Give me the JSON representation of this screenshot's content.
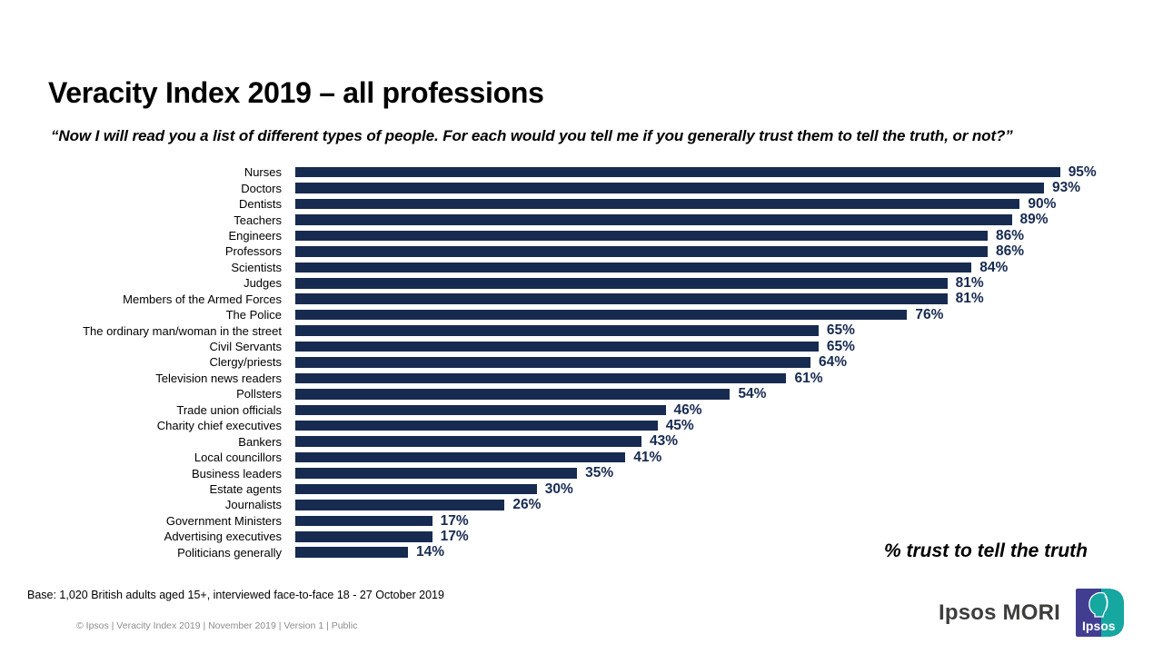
{
  "slide": {
    "title": "Veracity Index 2019 – all professions",
    "subtitle": "“Now I will read you a list of different types of people. For each would you tell me if you generally trust them to tell the truth, or not?”",
    "base_note": "Base: 1,020 British adults aged 15+, interviewed face-to-face 18 - 27 October 2019",
    "footer": "© Ipsos | Veracity Index 2019 | November 2019 | Version 1 | Public",
    "brand": {
      "wordmark": "Ipsos MORI",
      "logo_text": "Ipsos"
    }
  },
  "colors": {
    "bar_navy": "#172A50",
    "value_label_navy": "#172A50",
    "footer_gray": "#8C8C8C",
    "logo_purple": "#413E91",
    "logo_teal": "#16A7A1"
  },
  "chart_data": {
    "type": "bar",
    "orientation": "horizontal",
    "title": "Veracity Index 2019 – all professions",
    "annotation": "% trust to tell the truth",
    "unit": "%",
    "xlim": [
      0,
      100
    ],
    "grid": false,
    "legend": false,
    "bar_color": "#172A50",
    "categories": [
      "Nurses",
      "Doctors",
      "Dentists",
      "Teachers",
      "Engineers",
      "Professors",
      "Scientists",
      "Judges",
      "Members of the Armed Forces",
      "The Police",
      "The ordinary man/woman in the street",
      "Civil Servants",
      "Clergy/priests",
      "Television news readers",
      "Pollsters",
      "Trade union officials",
      "Charity chief executives",
      "Bankers",
      "Local councillors",
      "Business leaders",
      "Estate agents",
      "Journalists",
      "Government Ministers",
      "Advertising executives",
      "Politicians generally"
    ],
    "values": [
      95,
      93,
      90,
      89,
      86,
      86,
      84,
      81,
      81,
      76,
      65,
      65,
      64,
      61,
      54,
      46,
      45,
      43,
      41,
      35,
      30,
      26,
      17,
      17,
      14
    ]
  }
}
